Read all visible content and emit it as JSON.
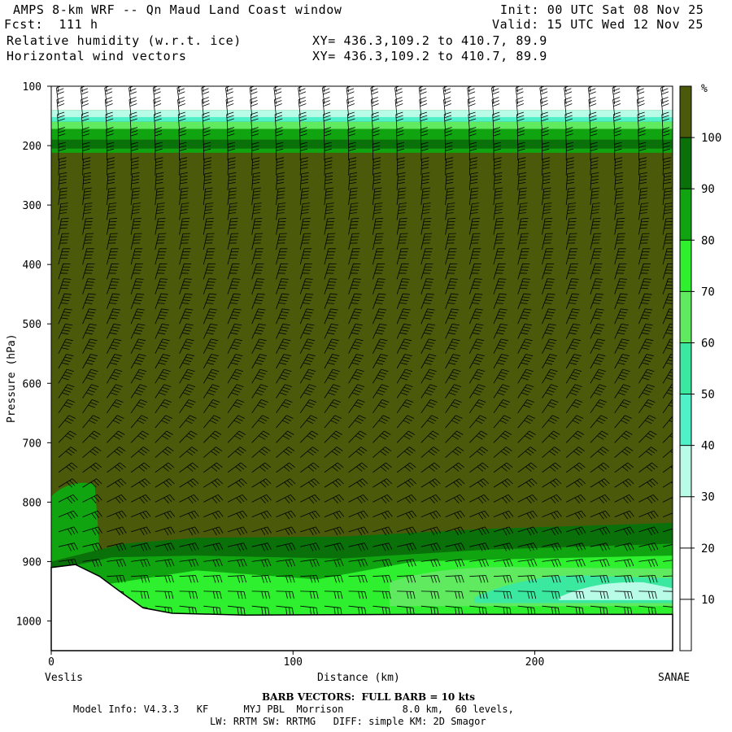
{
  "header": {
    "title": "AMPS 8-km WRF -- Qn Maud Land Coast window",
    "init": "Init: 00 UTC Sat 08 Nov 25",
    "fcst": "Fcst:  111 h",
    "valid": "Valid: 15 UTC Wed 12 Nov 25",
    "field1": "Relative humidity (w.r.t. ice)",
    "field1_xy": "XY= 436.3,109.2 to 410.7, 89.9",
    "field2": "Horizontal wind vectors",
    "field2_xy": "XY= 436.3,109.2 to 410.7, 89.9"
  },
  "colors": {
    "rh_gt100": "#4a5a0a",
    "rh_90": "#0a700a",
    "rh_80": "#10a510",
    "rh_70": "#2ef02e",
    "rh_60": "#60ea60",
    "rh_50": "#3ae8a0",
    "rh_40": "#50f0c8",
    "rh_30": "#b8fce8",
    "rh_lt30": "#ffffff"
  },
  "chart_data": {
    "type": "cross-section contour with wind barbs",
    "ylabel": "Pressure (hPa)",
    "xlabel": "Distance (km)",
    "y_ticks": [
      100,
      200,
      300,
      400,
      500,
      600,
      700,
      800,
      900,
      1000
    ],
    "y_range": [
      100,
      1050
    ],
    "x_ticks": [
      0,
      100,
      200
    ],
    "x_range": [
      0,
      257
    ],
    "x_start_label": "Veslis",
    "x_end_label": "SANAE",
    "colorbar_unit": "%",
    "colorbar_levels": [
      10,
      20,
      30,
      40,
      50,
      60,
      70,
      80,
      90,
      100
    ],
    "terrain_surface_hpa": [
      {
        "x": 0,
        "p": 910
      },
      {
        "x": 10,
        "p": 905
      },
      {
        "x": 20,
        "p": 925
      },
      {
        "x": 30,
        "p": 955
      },
      {
        "x": 38,
        "p": 978
      },
      {
        "x": 50,
        "p": 987
      },
      {
        "x": 80,
        "p": 990
      },
      {
        "x": 150,
        "p": 989
      },
      {
        "x": 257,
        "p": 989
      }
    ],
    "rh_layers": [
      {
        "level": "<30",
        "p_top": 100,
        "p_bottom": 140
      },
      {
        "level": "30-60",
        "p_top": 140,
        "p_bottom": 170
      },
      {
        "level": "60-90",
        "p_top": 170,
        "p_bottom": 195
      },
      {
        "level": ">100",
        "p_top": 195,
        "p_bottom": 850
      },
      {
        "level": "90-100",
        "p_top": 850,
        "p_bottom": 880
      },
      {
        "level": "70-80",
        "p_top": 880,
        "p_bottom": 960
      }
    ],
    "barb_x_km": [
      3,
      13,
      23,
      33,
      43,
      53,
      63,
      73,
      83,
      93,
      103,
      113,
      123,
      133,
      143,
      153,
      163,
      173,
      183,
      193,
      203,
      213,
      223,
      233,
      243,
      253
    ],
    "barb_levels_hpa": [
      110,
      130,
      150,
      175,
      200,
      225,
      250,
      275,
      300,
      325,
      350,
      375,
      400,
      425,
      450,
      475,
      500,
      525,
      550,
      575,
      600,
      625,
      650,
      675,
      700,
      725,
      750,
      775,
      800,
      825,
      850,
      875,
      900,
      925,
      950,
      975
    ]
  },
  "footer": {
    "barb_note": "BARB VECTORS:  FULL BARB = 10 kts",
    "model_info": "Model Info: V4.3.3   KF      MYJ PBL  Morrison          8.0 km,  60 levels,",
    "model_info2": "LW: RRTM SW: RRTMG   DIFF: simple KM: 2D Smagor"
  }
}
